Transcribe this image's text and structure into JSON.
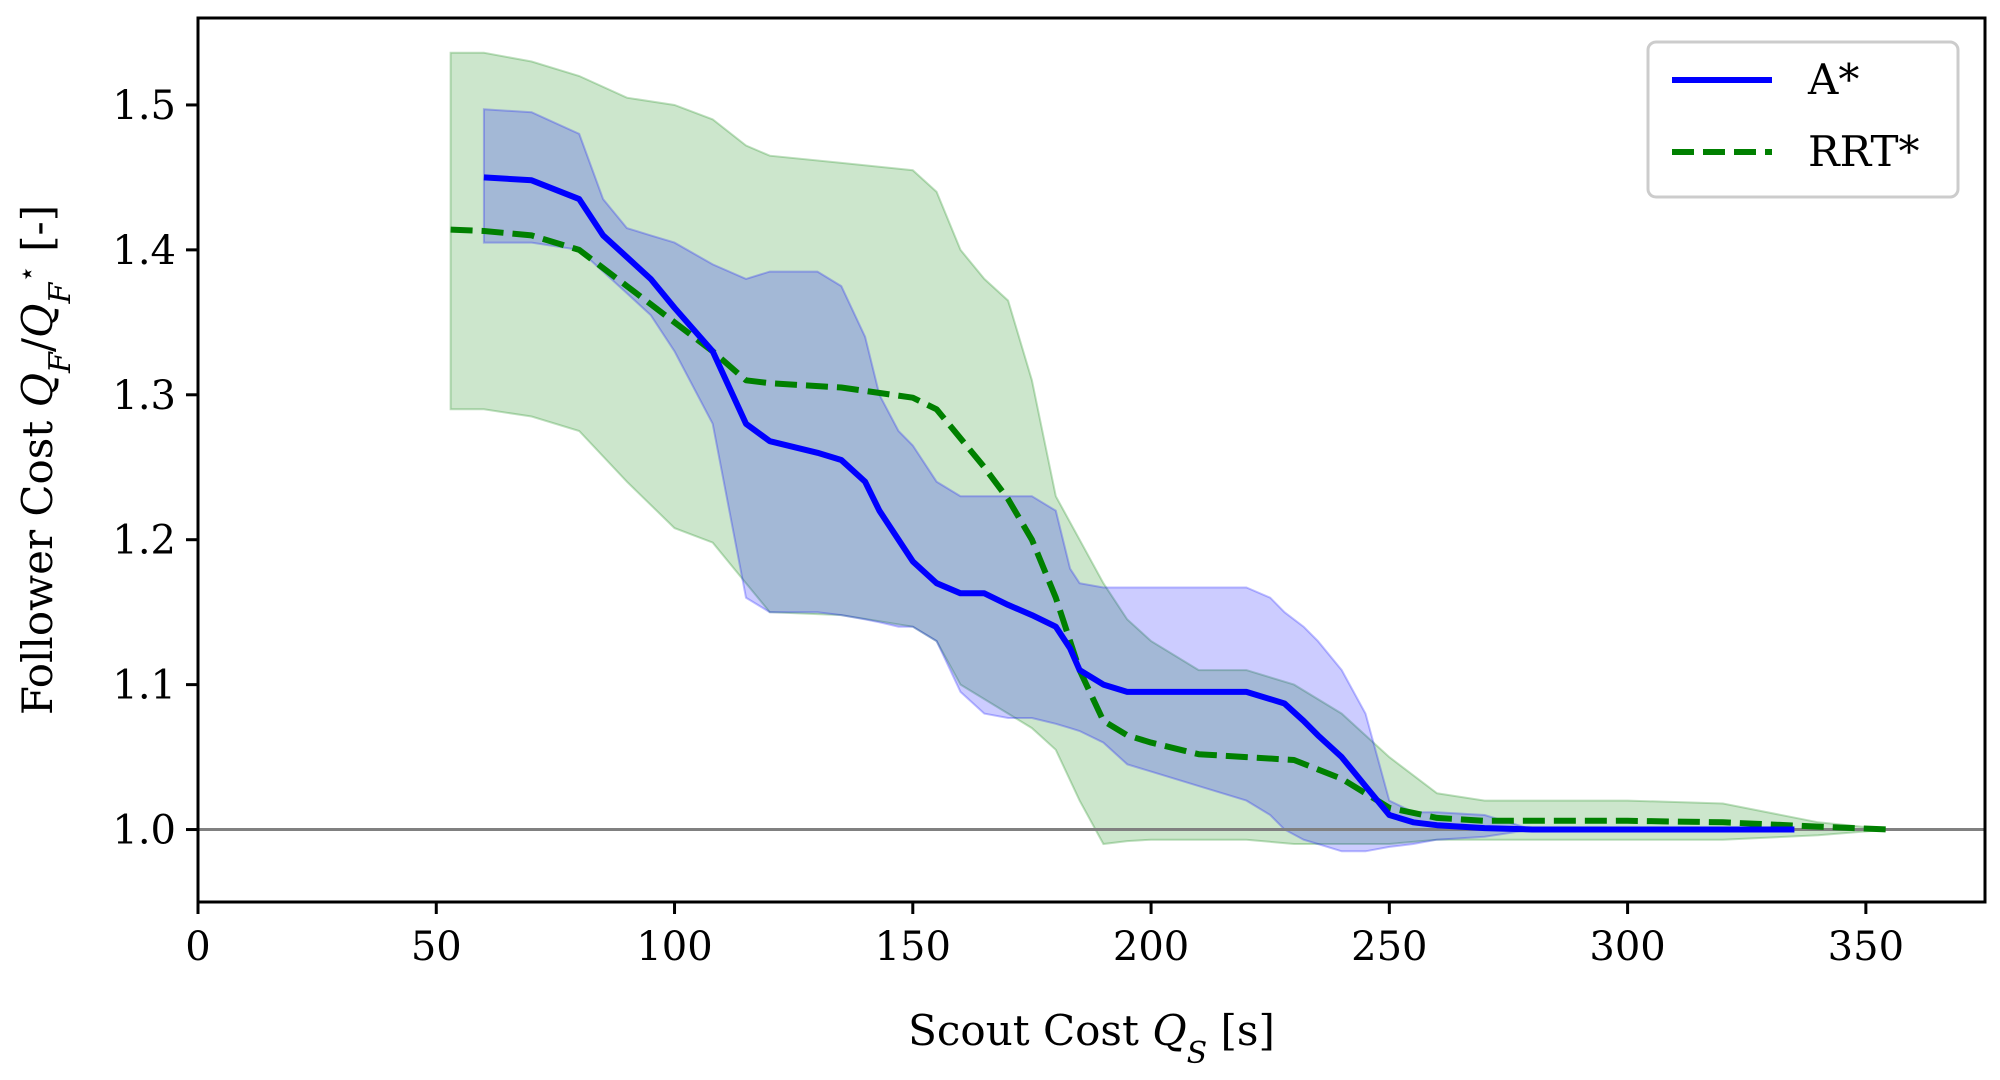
{
  "chart_data": {
    "type": "line",
    "xlabel": "Scout Cost Q_S [s]",
    "xlabel_parts": {
      "prefix": "Scout Cost ",
      "var": "Q",
      "sub": "S",
      "suffix": " [s]"
    },
    "ylabel": "Follower Cost Q_F/Q_F* [-]",
    "ylabel_parts": {
      "prefix": "Follower Cost ",
      "suffix": " [-]"
    },
    "xlim": [
      0,
      375
    ],
    "ylim": [
      0.95,
      1.56
    ],
    "xticks": [
      0,
      50,
      100,
      150,
      200,
      250,
      300,
      350
    ],
    "yticks": [
      1.0,
      1.1,
      1.2,
      1.3,
      1.4,
      1.5
    ],
    "ytick_labels": [
      "1.0",
      "1.1",
      "1.2",
      "1.3",
      "1.4",
      "1.5"
    ],
    "reference_line": 1.0,
    "legend_position": "top-right",
    "series": [
      {
        "name": "RRT*",
        "color": "#008000",
        "style": "dashed",
        "x": [
          53,
          60,
          70,
          80,
          90,
          100,
          108,
          115,
          120,
          135,
          150,
          155,
          160,
          165,
          170,
          175,
          180,
          185,
          190,
          195,
          200,
          210,
          220,
          230,
          240,
          250,
          260,
          270,
          280,
          300,
          320,
          340,
          355
        ],
        "y": [
          1.414,
          1.413,
          1.41,
          1.4,
          1.375,
          1.35,
          1.33,
          1.31,
          1.308,
          1.305,
          1.298,
          1.29,
          1.27,
          1.25,
          1.228,
          1.2,
          1.16,
          1.11,
          1.075,
          1.065,
          1.06,
          1.052,
          1.05,
          1.048,
          1.035,
          1.015,
          1.008,
          1.006,
          1.006,
          1.006,
          1.005,
          1.002,
          1.0
        ],
        "upper": [
          1.536,
          1.536,
          1.53,
          1.52,
          1.505,
          1.5,
          1.49,
          1.472,
          1.465,
          1.46,
          1.455,
          1.44,
          1.4,
          1.38,
          1.365,
          1.31,
          1.23,
          1.2,
          1.17,
          1.145,
          1.13,
          1.11,
          1.11,
          1.1,
          1.08,
          1.05,
          1.025,
          1.02,
          1.02,
          1.02,
          1.018,
          1.005,
          1.0
        ],
        "lower": [
          1.29,
          1.29,
          1.285,
          1.275,
          1.24,
          1.208,
          1.198,
          1.17,
          1.15,
          1.148,
          1.14,
          1.13,
          1.1,
          1.09,
          1.08,
          1.07,
          1.055,
          1.02,
          0.99,
          0.992,
          0.993,
          0.993,
          0.993,
          0.99,
          0.99,
          0.99,
          0.993,
          0.993,
          0.993,
          0.993,
          0.993,
          0.996,
          1.0
        ]
      },
      {
        "name": "A*",
        "color": "#0000ff",
        "style": "solid",
        "x": [
          60,
          70,
          80,
          85,
          90,
          95,
          100,
          108,
          115,
          120,
          130,
          135,
          140,
          143,
          147,
          150,
          155,
          160,
          165,
          170,
          175,
          180,
          183,
          185,
          190,
          195,
          200,
          210,
          220,
          225,
          228,
          232,
          235,
          240,
          245,
          250,
          255,
          260,
          270,
          280,
          300,
          320,
          335
        ],
        "y": [
          1.45,
          1.448,
          1.435,
          1.41,
          1.395,
          1.38,
          1.36,
          1.33,
          1.28,
          1.268,
          1.26,
          1.255,
          1.24,
          1.22,
          1.2,
          1.185,
          1.17,
          1.163,
          1.163,
          1.155,
          1.148,
          1.14,
          1.125,
          1.11,
          1.1,
          1.095,
          1.095,
          1.095,
          1.095,
          1.09,
          1.087,
          1.075,
          1.065,
          1.05,
          1.03,
          1.01,
          1.005,
          1.003,
          1.001,
          1.0,
          1.0,
          1.0,
          1.0
        ],
        "upper": [
          1.497,
          1.495,
          1.48,
          1.435,
          1.415,
          1.41,
          1.405,
          1.39,
          1.38,
          1.385,
          1.385,
          1.375,
          1.34,
          1.3,
          1.275,
          1.265,
          1.24,
          1.23,
          1.23,
          1.23,
          1.23,
          1.22,
          1.18,
          1.17,
          1.167,
          1.167,
          1.167,
          1.167,
          1.167,
          1.16,
          1.15,
          1.14,
          1.13,
          1.11,
          1.08,
          1.02,
          1.012,
          1.012,
          1.01,
          1.0,
          1.0,
          1.0,
          1.0
        ],
        "lower": [
          1.405,
          1.405,
          1.4,
          1.385,
          1.37,
          1.355,
          1.33,
          1.28,
          1.16,
          1.15,
          1.15,
          1.148,
          1.145,
          1.143,
          1.14,
          1.14,
          1.13,
          1.095,
          1.08,
          1.077,
          1.077,
          1.073,
          1.07,
          1.068,
          1.06,
          1.045,
          1.04,
          1.03,
          1.02,
          1.01,
          1.0,
          0.993,
          0.99,
          0.985,
          0.985,
          0.988,
          0.99,
          0.993,
          0.995,
          1.0,
          1.0,
          1.0,
          1.0
        ]
      }
    ]
  }
}
